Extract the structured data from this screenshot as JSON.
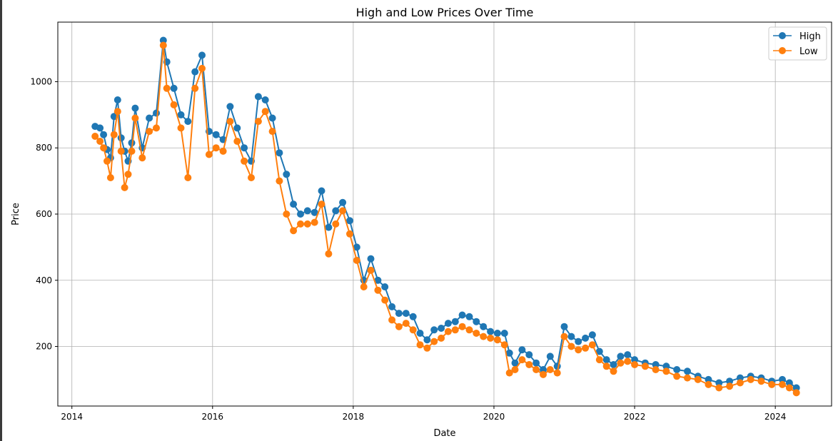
{
  "chart_data": {
    "type": "line",
    "title": "High and Low Prices Over Time",
    "xlabel": "Date",
    "ylabel": "Price",
    "xlim": [
      2013.8,
      2024.8
    ],
    "ylim": [
      20,
      1180
    ],
    "xticks": [
      2014,
      2016,
      2018,
      2020,
      2022,
      2024
    ],
    "xtick_labels": [
      "2014",
      "2016",
      "2018",
      "2020",
      "2022",
      "2024"
    ],
    "yticks": [
      200,
      400,
      600,
      800,
      1000
    ],
    "ytick_labels": [
      "200",
      "400",
      "600",
      "800",
      "1000"
    ],
    "grid": true,
    "legend_position": "top-right",
    "x": [
      2014.33,
      2014.4,
      2014.45,
      2014.5,
      2014.55,
      2014.6,
      2014.65,
      2014.7,
      2014.75,
      2014.8,
      2014.85,
      2014.9,
      2015.0,
      2015.1,
      2015.2,
      2015.3,
      2015.35,
      2015.45,
      2015.55,
      2015.65,
      2015.75,
      2015.85,
      2015.95,
      2016.05,
      2016.15,
      2016.25,
      2016.35,
      2016.45,
      2016.55,
      2016.65,
      2016.75,
      2016.85,
      2016.95,
      2017.05,
      2017.15,
      2017.25,
      2017.35,
      2017.45,
      2017.55,
      2017.65,
      2017.75,
      2017.85,
      2017.95,
      2018.05,
      2018.15,
      2018.25,
      2018.35,
      2018.45,
      2018.55,
      2018.65,
      2018.75,
      2018.85,
      2018.95,
      2019.05,
      2019.15,
      2019.25,
      2019.35,
      2019.45,
      2019.55,
      2019.65,
      2019.75,
      2019.85,
      2019.95,
      2020.05,
      2020.15,
      2020.22,
      2020.3,
      2020.4,
      2020.5,
      2020.6,
      2020.7,
      2020.8,
      2020.9,
      2021.0,
      2021.1,
      2021.2,
      2021.3,
      2021.4,
      2021.5,
      2021.6,
      2021.7,
      2021.8,
      2021.9,
      2022.0,
      2022.15,
      2022.3,
      2022.45,
      2022.6,
      2022.75,
      2022.9,
      2023.05,
      2023.2,
      2023.35,
      2023.5,
      2023.65,
      2023.8,
      2023.95,
      2024.1,
      2024.2,
      2024.3
    ],
    "series": [
      {
        "name": "High",
        "color": "#1f77b4",
        "values": [
          865,
          860,
          840,
          795,
          770,
          895,
          945,
          830,
          790,
          760,
          815,
          920,
          800,
          890,
          905,
          1125,
          1060,
          980,
          900,
          880,
          1030,
          1080,
          850,
          840,
          825,
          925,
          860,
          800,
          760,
          955,
          945,
          890,
          785,
          720,
          630,
          600,
          610,
          605,
          670,
          560,
          610,
          635,
          580,
          500,
          400,
          465,
          400,
          380,
          320,
          300,
          300,
          290,
          240,
          220,
          250,
          255,
          270,
          275,
          295,
          290,
          275,
          260,
          245,
          240,
          240,
          180,
          150,
          190,
          175,
          150,
          130,
          170,
          140,
          260,
          230,
          215,
          225,
          235,
          185,
          160,
          145,
          170,
          175,
          160,
          150,
          145,
          140,
          130,
          125,
          110,
          100,
          90,
          95,
          105,
          110,
          105,
          95,
          100,
          90,
          75
        ]
      },
      {
        "name": "Low",
        "color": "#ff7f0e",
        "values": [
          835,
          820,
          800,
          760,
          710,
          840,
          910,
          790,
          680,
          720,
          790,
          890,
          770,
          850,
          860,
          1110,
          980,
          930,
          860,
          710,
          980,
          1040,
          780,
          800,
          790,
          880,
          820,
          760,
          710,
          880,
          910,
          850,
          700,
          600,
          550,
          570,
          570,
          575,
          630,
          480,
          570,
          610,
          540,
          460,
          380,
          430,
          370,
          340,
          280,
          260,
          270,
          250,
          205,
          195,
          215,
          225,
          245,
          250,
          260,
          250,
          240,
          230,
          225,
          220,
          205,
          120,
          130,
          160,
          145,
          130,
          115,
          130,
          120,
          230,
          200,
          190,
          195,
          205,
          160,
          140,
          125,
          150,
          155,
          145,
          140,
          130,
          125,
          110,
          105,
          100,
          85,
          75,
          80,
          90,
          100,
          95,
          85,
          85,
          75,
          60
        ]
      }
    ]
  }
}
